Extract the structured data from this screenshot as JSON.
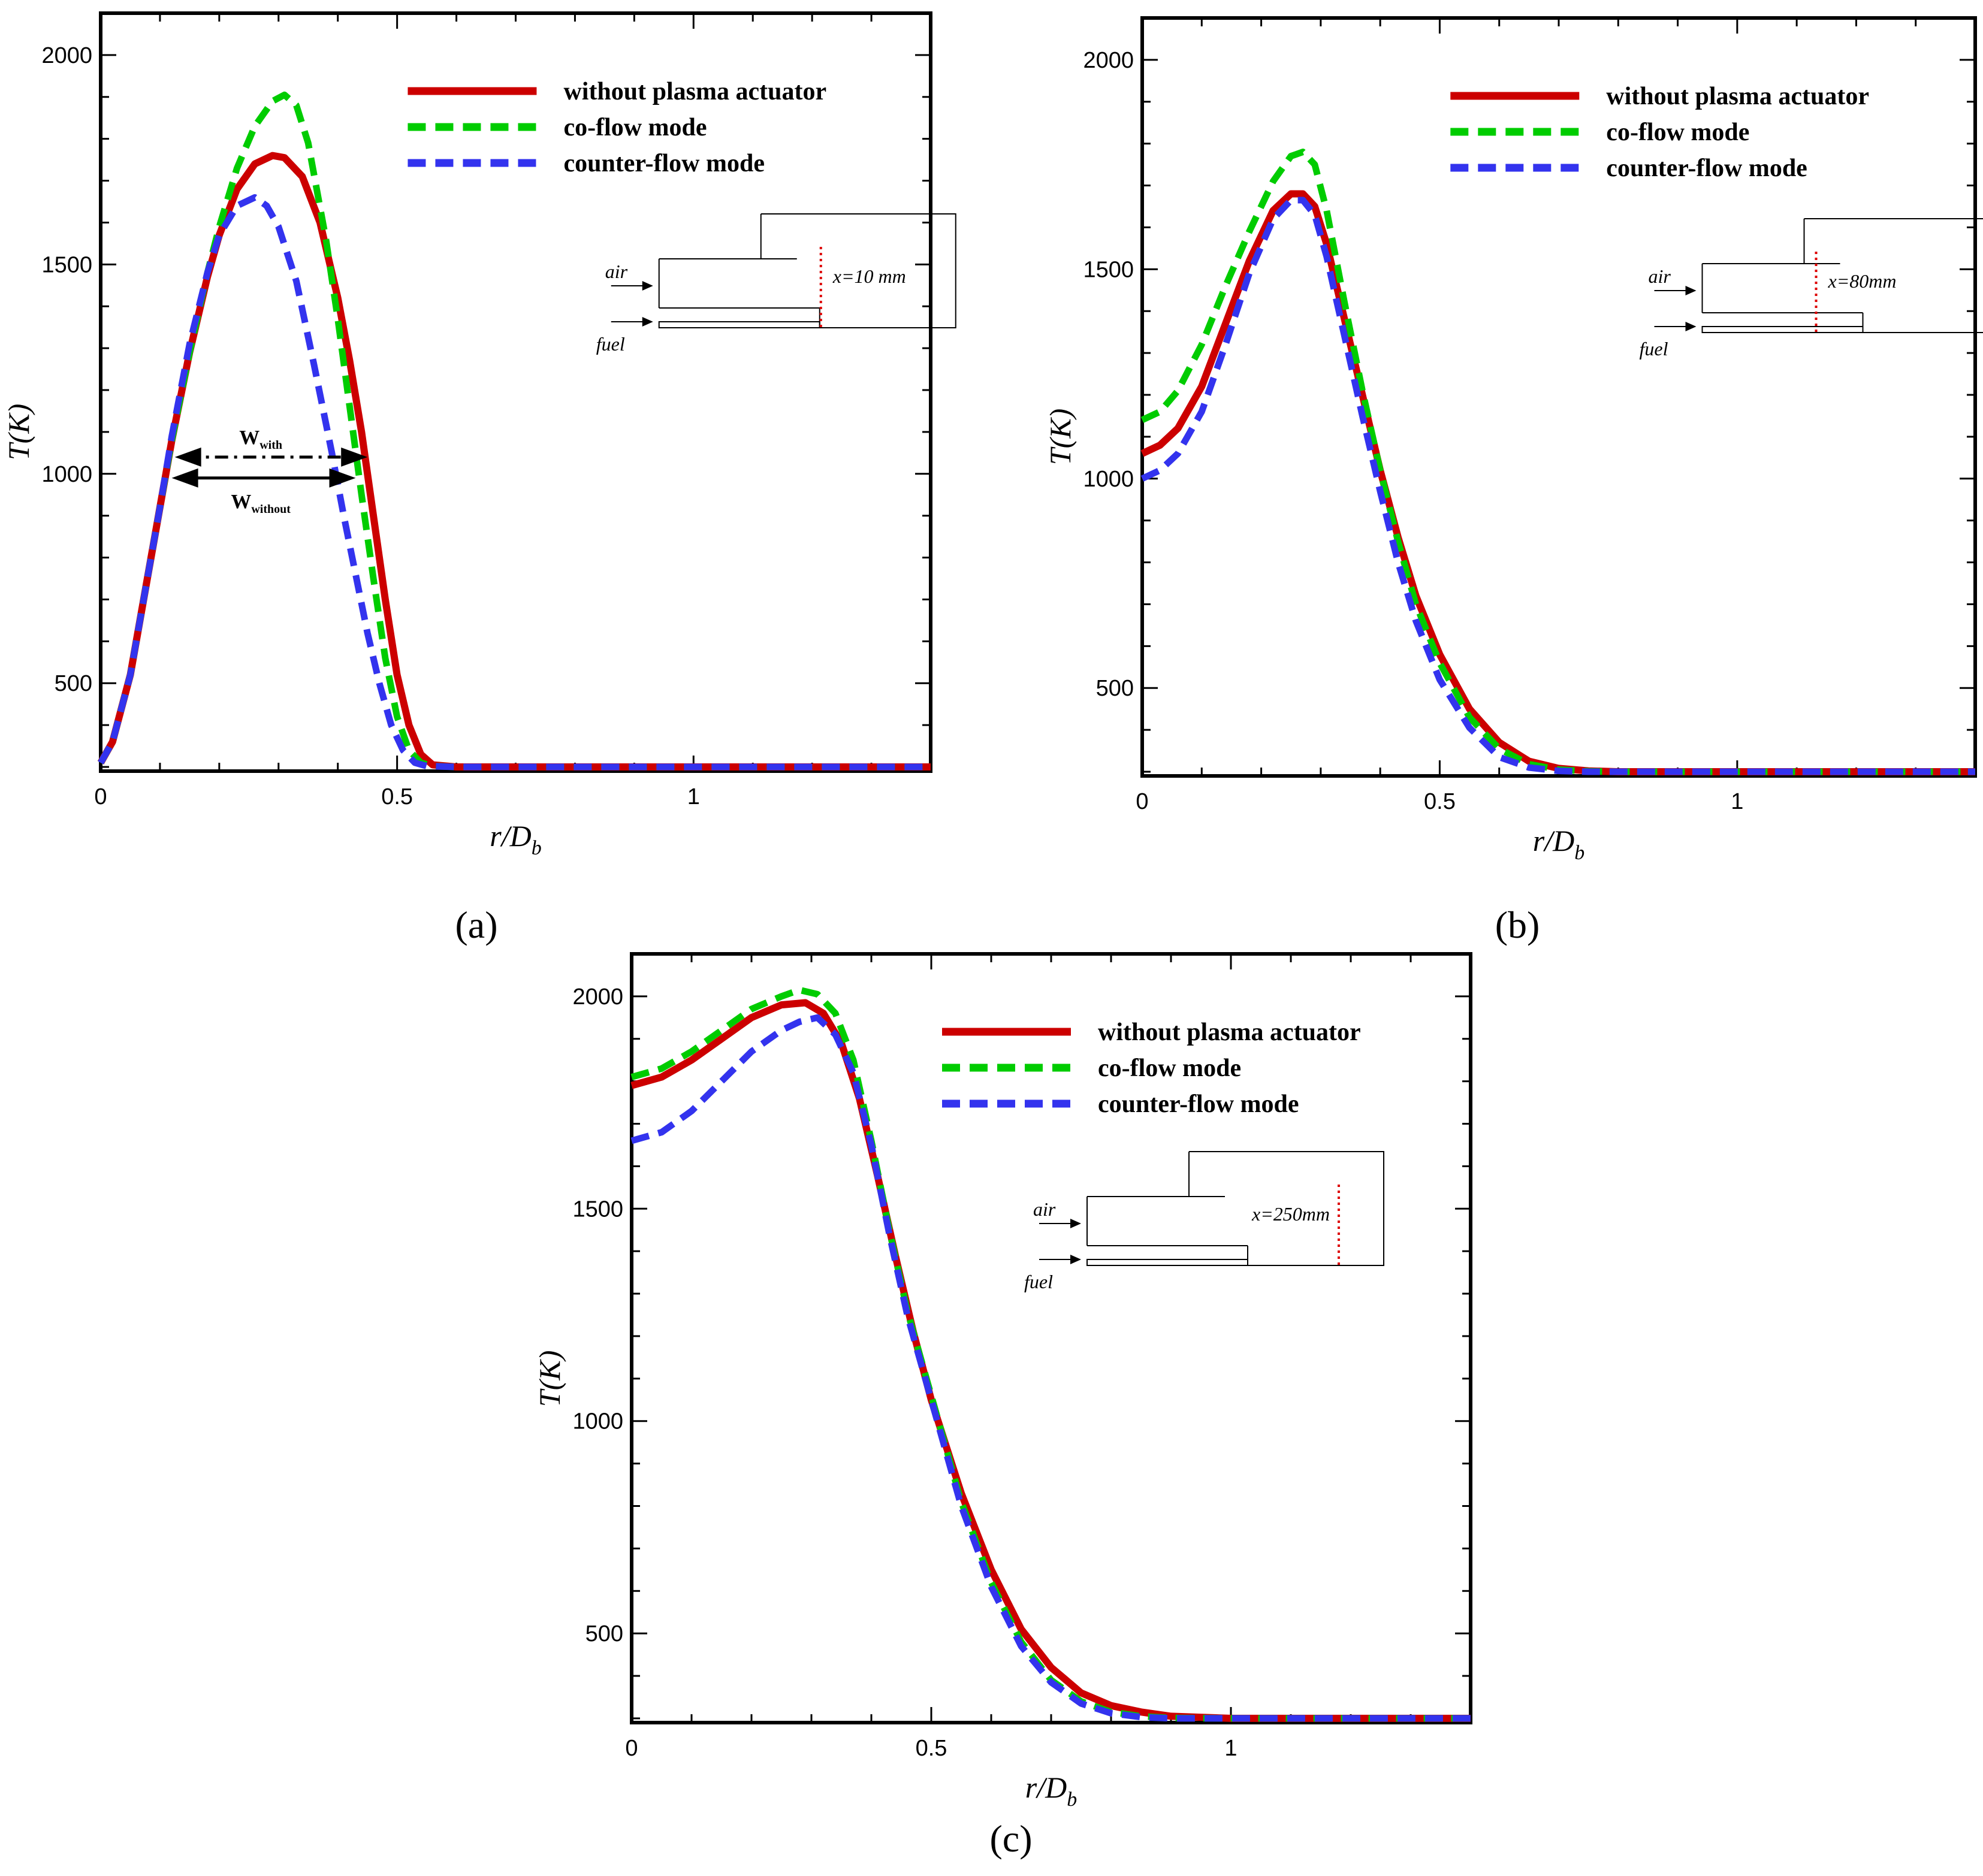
{
  "chart_data": [
    {
      "type": "line",
      "panel_label": "(a)",
      "xlabel": "r/D",
      "xlabel_sub": "b",
      "ylabel": "T(K)",
      "xlim": [
        0,
        1.4
      ],
      "ylim": [
        290,
        2100
      ],
      "x_ticks": [
        "0",
        "0.5",
        "1"
      ],
      "y_ticks": [
        "500",
        "1000",
        "1500",
        "2000"
      ],
      "legend": [
        "without plasma actuator",
        "co-flow mode",
        "counter-flow mode"
      ],
      "inset": {
        "station_label": "x=10 mm",
        "air_label": "air",
        "fuel_label": "fuel"
      },
      "annotation": {
        "with_label": "W",
        "with_sub": "with",
        "without_label": "W",
        "without_sub": "without"
      },
      "series": [
        {
          "name": "without plasma actuator",
          "color": "#cc0000",
          "style": "solid",
          "x": [
            0,
            0.02,
            0.05,
            0.08,
            0.1,
            0.12,
            0.15,
            0.18,
            0.2,
            0.23,
            0.26,
            0.29,
            0.31,
            0.34,
            0.37,
            0.4,
            0.42,
            0.44,
            0.46,
            0.48,
            0.5,
            0.52,
            0.54,
            0.56,
            0.6,
            0.8,
            1.0,
            1.2,
            1.4
          ],
          "y": [
            310,
            360,
            520,
            760,
            920,
            1080,
            1290,
            1470,
            1570,
            1680,
            1740,
            1760,
            1755,
            1710,
            1600,
            1420,
            1270,
            1100,
            900,
            700,
            520,
            400,
            330,
            305,
            300,
            300,
            300,
            300,
            300
          ]
        },
        {
          "name": "co-flow mode",
          "color": "#00cc00",
          "style": "dashed",
          "x": [
            0,
            0.02,
            0.05,
            0.08,
            0.1,
            0.12,
            0.15,
            0.18,
            0.2,
            0.23,
            0.26,
            0.29,
            0.31,
            0.33,
            0.35,
            0.38,
            0.4,
            0.42,
            0.44,
            0.46,
            0.48,
            0.5,
            0.52,
            0.54,
            0.56,
            0.6,
            0.8,
            1.0,
            1.2,
            1.4
          ],
          "y": [
            310,
            360,
            520,
            760,
            920,
            1080,
            1290,
            1480,
            1590,
            1730,
            1830,
            1890,
            1905,
            1880,
            1790,
            1560,
            1370,
            1160,
            950,
            750,
            560,
            420,
            340,
            310,
            302,
            300,
            300,
            300,
            300,
            300
          ]
        },
        {
          "name": "counter-flow mode",
          "color": "#3333ee",
          "style": "dashed",
          "x": [
            0,
            0.02,
            0.05,
            0.08,
            0.1,
            0.12,
            0.15,
            0.18,
            0.2,
            0.23,
            0.26,
            0.28,
            0.3,
            0.33,
            0.36,
            0.39,
            0.41,
            0.43,
            0.45,
            0.47,
            0.49,
            0.51,
            0.53,
            0.55,
            0.6,
            0.8,
            1.0,
            1.2,
            1.4
          ],
          "y": [
            310,
            360,
            520,
            760,
            920,
            1090,
            1310,
            1480,
            1570,
            1640,
            1660,
            1640,
            1590,
            1460,
            1260,
            1050,
            900,
            760,
            620,
            500,
            400,
            340,
            310,
            302,
            300,
            300,
            300,
            300,
            300
          ]
        }
      ]
    },
    {
      "type": "line",
      "panel_label": "(b)",
      "xlabel": "r/D",
      "xlabel_sub": "b",
      "ylabel": "T(K)",
      "xlim": [
        0,
        1.4
      ],
      "ylim": [
        290,
        2100
      ],
      "x_ticks": [
        "0",
        "0.5",
        "1"
      ],
      "y_ticks": [
        "500",
        "1000",
        "1500",
        "2000"
      ],
      "legend": [
        "without plasma actuator",
        "co-flow mode",
        "counter-flow mode"
      ],
      "inset": {
        "station_label": "x=80mm",
        "air_label": "air",
        "fuel_label": "fuel"
      },
      "series": [
        {
          "name": "without plasma actuator",
          "color": "#cc0000",
          "style": "solid",
          "x": [
            0,
            0.03,
            0.06,
            0.1,
            0.14,
            0.18,
            0.22,
            0.25,
            0.27,
            0.29,
            0.31,
            0.34,
            0.37,
            0.4,
            0.43,
            0.46,
            0.5,
            0.55,
            0.6,
            0.65,
            0.7,
            0.75,
            0.8,
            1.0,
            1.2,
            1.4
          ],
          "y": [
            1060,
            1080,
            1120,
            1220,
            1370,
            1520,
            1640,
            1680,
            1680,
            1650,
            1560,
            1380,
            1200,
            1020,
            860,
            720,
            580,
            450,
            370,
            325,
            308,
            302,
            300,
            300,
            300,
            300
          ]
        },
        {
          "name": "co-flow mode",
          "color": "#00cc00",
          "style": "dashed",
          "x": [
            0,
            0.03,
            0.06,
            0.1,
            0.14,
            0.18,
            0.22,
            0.25,
            0.27,
            0.29,
            0.31,
            0.34,
            0.37,
            0.4,
            0.43,
            0.46,
            0.5,
            0.55,
            0.6,
            0.65,
            0.7,
            0.75,
            0.8,
            1.0,
            1.2,
            1.4
          ],
          "y": [
            1140,
            1160,
            1210,
            1320,
            1460,
            1590,
            1710,
            1770,
            1780,
            1750,
            1640,
            1420,
            1210,
            1020,
            850,
            700,
            560,
            430,
            355,
            318,
            305,
            301,
            300,
            300,
            300,
            300
          ]
        },
        {
          "name": "counter-flow mode",
          "color": "#3333ee",
          "style": "dashed",
          "x": [
            0,
            0.03,
            0.06,
            0.1,
            0.14,
            0.18,
            0.22,
            0.25,
            0.27,
            0.29,
            0.31,
            0.34,
            0.37,
            0.4,
            0.43,
            0.46,
            0.5,
            0.55,
            0.6,
            0.65,
            0.7,
            0.75,
            0.8,
            1.0,
            1.2,
            1.4
          ],
          "y": [
            1000,
            1020,
            1060,
            1160,
            1320,
            1490,
            1620,
            1665,
            1665,
            1630,
            1530,
            1340,
            1150,
            970,
            800,
            660,
            520,
            405,
            335,
            310,
            302,
            300,
            300,
            300,
            300,
            300
          ]
        }
      ]
    },
    {
      "type": "line",
      "panel_label": "(c)",
      "xlabel": "r/D",
      "xlabel_sub": "b",
      "ylabel": "T(K)",
      "xlim": [
        0,
        1.4
      ],
      "ylim": [
        290,
        2100
      ],
      "x_ticks": [
        "0",
        "0.5",
        "1"
      ],
      "y_ticks": [
        "500",
        "1000",
        "1500",
        "2000"
      ],
      "legend": [
        "without plasma actuator",
        "co-flow mode",
        "counter-flow mode"
      ],
      "inset": {
        "station_label": "x=250mm",
        "air_label": "air",
        "fuel_label": "fuel"
      },
      "series": [
        {
          "name": "without plasma actuator",
          "color": "#cc0000",
          "style": "solid",
          "x": [
            0,
            0.05,
            0.1,
            0.15,
            0.2,
            0.25,
            0.29,
            0.32,
            0.35,
            0.38,
            0.41,
            0.44,
            0.47,
            0.5,
            0.55,
            0.6,
            0.65,
            0.7,
            0.75,
            0.8,
            0.85,
            0.9,
            1.0,
            1.2,
            1.4
          ],
          "y": [
            1790,
            1810,
            1850,
            1900,
            1950,
            1980,
            1985,
            1960,
            1890,
            1760,
            1580,
            1390,
            1210,
            1050,
            830,
            650,
            510,
            420,
            360,
            330,
            315,
            305,
            300,
            300,
            300
          ]
        },
        {
          "name": "co-flow mode",
          "color": "#00cc00",
          "style": "dashed",
          "x": [
            0,
            0.05,
            0.1,
            0.15,
            0.2,
            0.25,
            0.28,
            0.31,
            0.34,
            0.37,
            0.4,
            0.43,
            0.46,
            0.5,
            0.55,
            0.6,
            0.65,
            0.7,
            0.75,
            0.8,
            0.85,
            0.9,
            1.0,
            1.2,
            1.4
          ],
          "y": [
            1810,
            1830,
            1870,
            1920,
            1970,
            2000,
            2015,
            2005,
            1960,
            1850,
            1660,
            1450,
            1260,
            1060,
            810,
            620,
            480,
            390,
            340,
            315,
            305,
            301,
            300,
            300,
            300
          ]
        },
        {
          "name": "counter-flow mode",
          "color": "#3333ee",
          "style": "dashed",
          "x": [
            0,
            0.05,
            0.1,
            0.15,
            0.2,
            0.25,
            0.28,
            0.31,
            0.34,
            0.37,
            0.4,
            0.43,
            0.46,
            0.5,
            0.55,
            0.6,
            0.65,
            0.7,
            0.75,
            0.8,
            0.85,
            0.9,
            1.0,
            1.2,
            1.4
          ],
          "y": [
            1660,
            1680,
            1730,
            1800,
            1870,
            1920,
            1940,
            1950,
            1910,
            1820,
            1650,
            1440,
            1250,
            1050,
            800,
            610,
            470,
            385,
            335,
            312,
            303,
            300,
            300,
            300,
            300
          ]
        }
      ]
    }
  ]
}
